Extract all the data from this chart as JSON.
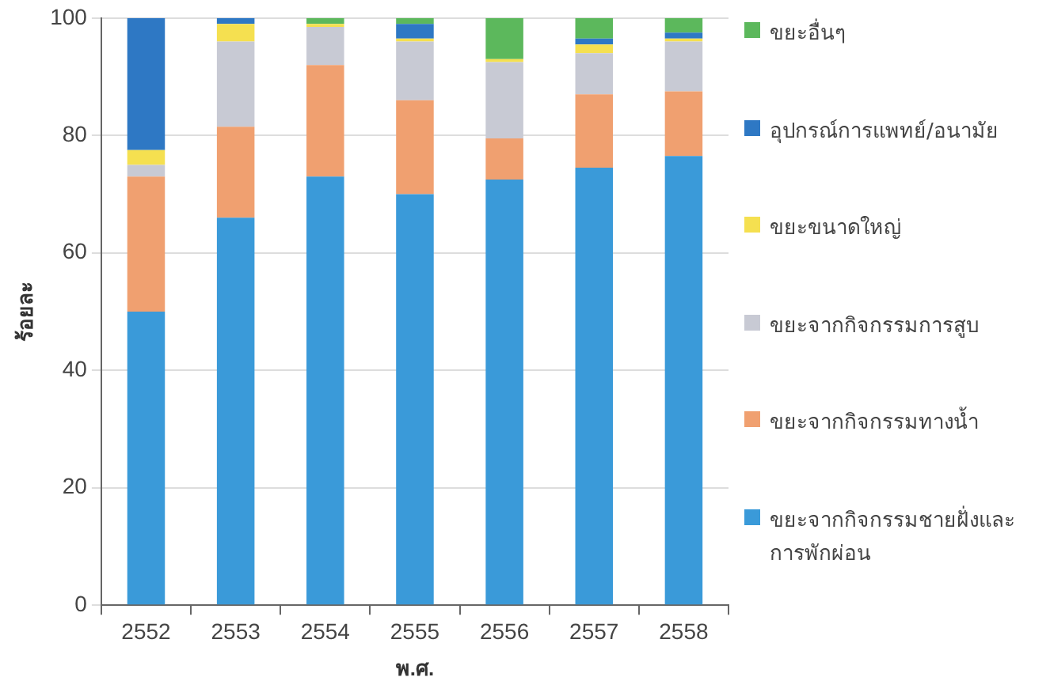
{
  "chart_data": {
    "type": "bar",
    "stacked": true,
    "xlabel": "พ.ศ.",
    "ylabel": "ร้อยละ",
    "categories": [
      "2552",
      "2553",
      "2554",
      "2555",
      "2556",
      "2557",
      "2558"
    ],
    "series": [
      {
        "name": "ขยะจากกิจกรรมชายฝั่งและการพักผ่อน",
        "color": "#3a9ad9",
        "values": [
          50,
          66,
          73,
          70,
          72.5,
          74.5,
          76.5
        ]
      },
      {
        "name": "ขยะจากกิจกรรมทางน้ำ",
        "color": "#f0a070",
        "values": [
          23,
          15.5,
          19,
          16,
          7,
          12.5,
          11
        ]
      },
      {
        "name": "ขยะจากกิจกรรมการสูบ",
        "color": "#c8cad4",
        "values": [
          2,
          14.5,
          6.5,
          10,
          13,
          7,
          8.5
        ]
      },
      {
        "name": "ขยะขนาดใหญ่",
        "color": "#f5e050",
        "values": [
          2.5,
          3,
          0.5,
          0.5,
          0.5,
          1.5,
          0.5
        ]
      },
      {
        "name": "อุปกรณ์การแพทย์/อนามัย",
        "color": "#2e78c4",
        "values": [
          22.5,
          1,
          0,
          2.5,
          0,
          1,
          1
        ]
      },
      {
        "name": "ขยะอื่นๆ",
        "color": "#5cb85c",
        "values": [
          0,
          0,
          1,
          1,
          7,
          3.5,
          2.5
        ]
      }
    ],
    "ylim": [
      0,
      100
    ],
    "yticks": [
      0,
      20,
      40,
      60,
      80,
      100
    ],
    "grid": "y",
    "legend": "right"
  }
}
